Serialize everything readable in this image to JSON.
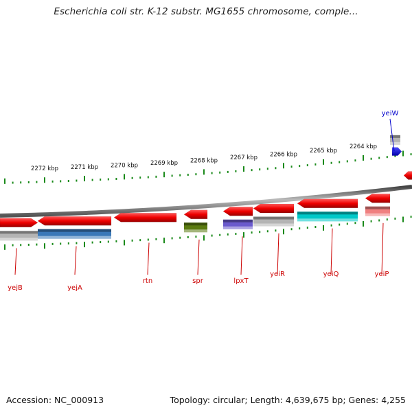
{
  "title": "Escherichia coli str. K-12 substr. MG1655 chromosome, comple...",
  "footer": {
    "accession": "Accession: NC_000913",
    "topology": "Topology: circular; Length: 4,639,675 bp; Genes: 4,255"
  },
  "ruler": {
    "labels": [
      "2272 kbp",
      "2271 kbp",
      "2270 kbp",
      "2269 kbp",
      "2268 kbp",
      "2267 kbp",
      "2266 kbp",
      "2265 kbp",
      "2264 kbp"
    ]
  },
  "genes": [
    {
      "name": "yejB",
      "strand": "forward",
      "label": "yejB",
      "color": "#cc0000",
      "cog_color": "#b4b4b4"
    },
    {
      "name": "yejA",
      "strand": "reverse",
      "label": "yejA",
      "color": "#cc0000",
      "cog_color": "#3a78b8"
    },
    {
      "name": "rtn",
      "strand": "reverse",
      "label": "rtn",
      "color": "#cc0000",
      "cog_color": ""
    },
    {
      "name": "spr",
      "strand": "reverse",
      "label": "spr",
      "color": "#cc0000",
      "cog_color": "#5a7a10"
    },
    {
      "name": "lpxT",
      "strand": "reverse",
      "label": "lpxT",
      "color": "#cc0000",
      "cog_color": "#6a5acd"
    },
    {
      "name": "yeiR",
      "strand": "reverse",
      "label": "yeiR",
      "color": "#cc0000",
      "cog_color": "#b4b4b4"
    },
    {
      "name": "yeiQ",
      "strand": "reverse",
      "label": "yeiQ",
      "color": "#cc0000",
      "cog_color": "#00c8c8"
    },
    {
      "name": "yeiP",
      "strand": "reverse",
      "label": "yeiP",
      "color": "#cc0000",
      "cog_color": "#f08080"
    },
    {
      "name": "yeiW",
      "strand": "forward",
      "label": "yeiW",
      "color": "#0000cc",
      "cog_color": "#b4b4b4"
    }
  ],
  "colors": {
    "backbone": "#7a7a7a",
    "tick": "#1a8a1a",
    "cds_label": "#cc0000",
    "rna_label": "#0000cc"
  }
}
